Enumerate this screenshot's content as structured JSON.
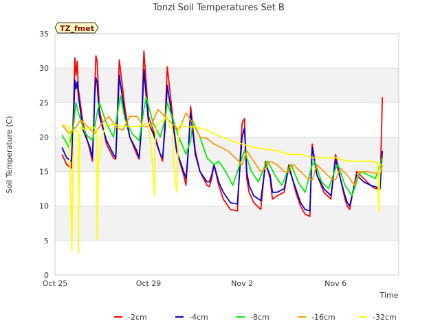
{
  "chart_data": {
    "type": "line",
    "title": "Tonzi Soil Temperatures Set B",
    "xlabel": "Time",
    "ylabel": "Soil Temperature (C)",
    "tag": "TZ_fmet",
    "ylim": [
      0,
      35
    ],
    "xlim_days": [
      "Oct 25",
      "Nov 8"
    ],
    "yticks": [
      0,
      5,
      10,
      15,
      20,
      25,
      30,
      35
    ],
    "xticks": [
      {
        "label": "Oct 25",
        "day": 0
      },
      {
        "label": "Oct 29",
        "day": 4
      },
      {
        "label": "Nov 2",
        "day": 8
      },
      {
        "label": "Nov 6",
        "day": 12
      }
    ],
    "grid": true,
    "legend_position": "bottom",
    "series": [
      {
        "name": "-2cm",
        "color": "#ff0000",
        "x": [
          0.3,
          0.5,
          0.7,
          0.8,
          0.85,
          0.9,
          0.95,
          1.0,
          1.2,
          1.5,
          1.6,
          1.65,
          1.7,
          1.75,
          1.8,
          1.9,
          2.2,
          2.5,
          2.6,
          2.65,
          2.75,
          3.0,
          3.2,
          3.5,
          3.6,
          3.7,
          3.8,
          4.0,
          4.2,
          4.5,
          4.6,
          4.7,
          4.8,
          5.0,
          5.2,
          5.5,
          5.6,
          5.7,
          5.8,
          6.0,
          6.2,
          6.5,
          6.6,
          6.7,
          6.8,
          7.0,
          7.2,
          7.5,
          7.8,
          8.0,
          8.1,
          8.2,
          8.3,
          8.5,
          8.8,
          9.0,
          9.2,
          9.3,
          9.5,
          9.8,
          10.0,
          10.3,
          10.5,
          10.7,
          10.9,
          11.0,
          11.2,
          11.5,
          11.8,
          12.0,
          12.2,
          12.4,
          12.5,
          12.6,
          12.9,
          13.2,
          13.5,
          13.7,
          13.9,
          14.0
        ],
        "y": [
          17.5,
          16.0,
          15.5,
          25.0,
          31.5,
          29.0,
          31.0,
          27.0,
          22.0,
          18.0,
          16.5,
          21.0,
          27.0,
          31.8,
          31.0,
          24.0,
          19.0,
          17.0,
          16.8,
          22.0,
          31.2,
          24.0,
          20.0,
          17.5,
          16.8,
          22.0,
          32.5,
          23.0,
          21.0,
          17.5,
          16.5,
          22.0,
          30.2,
          24.0,
          18.0,
          14.5,
          13.0,
          18.0,
          24.5,
          18.0,
          15.0,
          13.0,
          12.8,
          14.0,
          16.0,
          13.0,
          11.0,
          9.5,
          9.3,
          22.0,
          22.7,
          14.0,
          12.0,
          10.5,
          9.5,
          16.5,
          14.0,
          11.0,
          11.5,
          12.0,
          16.0,
          12.0,
          10.0,
          8.8,
          8.5,
          19.0,
          14.5,
          12.0,
          11.0,
          17.5,
          14.0,
          11.0,
          10.0,
          9.5,
          15.0,
          14.0,
          13.0,
          12.5,
          12.5,
          25.8
        ]
      },
      {
        "name": "-4cm",
        "color": "#0000cc",
        "x": [
          0.3,
          0.5,
          0.7,
          0.8,
          0.85,
          0.9,
          0.95,
          1.0,
          1.2,
          1.5,
          1.6,
          1.65,
          1.7,
          1.75,
          1.8,
          1.9,
          2.2,
          2.5,
          2.6,
          2.65,
          2.75,
          3.0,
          3.2,
          3.5,
          3.6,
          3.7,
          3.8,
          4.0,
          4.2,
          4.5,
          4.6,
          4.7,
          4.8,
          5.0,
          5.2,
          5.5,
          5.6,
          5.7,
          5.8,
          6.0,
          6.2,
          6.5,
          6.6,
          6.7,
          6.8,
          7.0,
          7.2,
          7.5,
          7.8,
          8.0,
          8.1,
          8.2,
          8.3,
          8.5,
          8.8,
          9.0,
          9.2,
          9.3,
          9.5,
          9.8,
          10.0,
          10.3,
          10.5,
          10.7,
          10.9,
          11.0,
          11.2,
          11.5,
          11.8,
          12.0,
          12.2,
          12.4,
          12.5,
          12.6,
          12.9,
          13.2,
          13.5,
          13.7,
          13.9,
          14.0
        ],
        "y": [
          18.5,
          17.0,
          16.5,
          23.0,
          28.3,
          27.0,
          28.0,
          26.0,
          21.0,
          18.5,
          17.0,
          21.0,
          26.0,
          28.6,
          28.0,
          23.0,
          19.5,
          17.5,
          17.0,
          21.0,
          29.0,
          23.0,
          20.0,
          18.0,
          17.0,
          21.5,
          29.8,
          22.0,
          20.5,
          17.5,
          17.0,
          21.0,
          27.5,
          23.0,
          18.0,
          15.0,
          14.0,
          18.0,
          23.5,
          17.5,
          15.0,
          13.5,
          13.5,
          14.5,
          16.0,
          13.5,
          12.0,
          10.5,
          10.3,
          20.0,
          21.3,
          15.0,
          13.0,
          11.5,
          10.8,
          16.0,
          14.5,
          12.0,
          12.0,
          12.5,
          15.5,
          12.5,
          10.5,
          9.5,
          9.3,
          18.5,
          14.5,
          12.5,
          11.5,
          16.8,
          14.0,
          11.5,
          10.5,
          10.0,
          14.5,
          13.5,
          13.0,
          12.8,
          12.5,
          18.0
        ]
      },
      {
        "name": "-8cm",
        "color": "#00ee00",
        "x": [
          0.3,
          0.6,
          0.8,
          0.9,
          1.0,
          1.3,
          1.6,
          1.8,
          1.9,
          2.2,
          2.5,
          2.7,
          2.8,
          3.0,
          3.3,
          3.6,
          3.8,
          3.9,
          4.2,
          4.5,
          4.7,
          4.8,
          5.0,
          5.3,
          5.6,
          5.8,
          5.9,
          6.2,
          6.5,
          6.8,
          7.0,
          7.3,
          7.6,
          8.0,
          8.1,
          8.4,
          8.7,
          9.0,
          9.1,
          9.4,
          9.7,
          10.0,
          10.1,
          10.4,
          10.7,
          11.0,
          11.1,
          11.4,
          11.7,
          12.0,
          12.1,
          12.4,
          12.7,
          13.0,
          13.1,
          13.4,
          13.7,
          14.0
        ],
        "y": [
          20.3,
          18.5,
          22.0,
          25.0,
          23.5,
          20.5,
          19.5,
          23.5,
          25.0,
          22.0,
          20.0,
          24.0,
          26.0,
          22.5,
          20.5,
          19.5,
          24.0,
          25.8,
          22.0,
          20.0,
          22.5,
          25.0,
          23.0,
          20.0,
          17.5,
          19.5,
          22.3,
          20.0,
          17.0,
          16.0,
          16.5,
          15.0,
          13.0,
          17.0,
          18.0,
          15.0,
          13.5,
          16.0,
          16.5,
          14.5,
          13.0,
          15.5,
          16.0,
          13.5,
          12.0,
          16.0,
          16.5,
          13.5,
          12.5,
          15.5,
          16.0,
          13.0,
          11.5,
          14.5,
          15.0,
          14.5,
          14.0,
          17.0
        ]
      },
      {
        "name": "-16cm",
        "color": "#ff9900",
        "x": [
          0.3,
          0.6,
          0.9,
          1.1,
          1.4,
          1.7,
          2.0,
          2.3,
          2.6,
          2.9,
          3.2,
          3.5,
          3.8,
          4.1,
          4.4,
          4.7,
          5.0,
          5.3,
          5.6,
          5.9,
          6.2,
          6.5,
          6.8,
          7.1,
          7.4,
          7.7,
          8.0,
          8.2,
          8.5,
          8.8,
          9.0,
          9.2,
          9.5,
          9.8,
          10.0,
          10.2,
          10.5,
          10.8,
          11.0,
          11.2,
          11.5,
          11.8,
          12.0,
          12.2,
          12.5,
          12.8,
          13.0,
          13.3,
          13.6,
          13.9,
          14.0
        ],
        "y": [
          21.8,
          20.5,
          21.5,
          22.5,
          21.5,
          20.5,
          22.0,
          23.0,
          21.5,
          21.0,
          23.0,
          23.0,
          21.5,
          21.5,
          24.0,
          23.0,
          22.0,
          21.0,
          23.5,
          22.0,
          20.0,
          19.8,
          19.0,
          18.5,
          18.0,
          17.0,
          16.0,
          18.0,
          16.5,
          15.0,
          15.5,
          16.5,
          16.0,
          15.0,
          15.0,
          16.0,
          15.0,
          14.0,
          13.8,
          16.0,
          15.0,
          14.0,
          13.8,
          15.5,
          14.5,
          13.0,
          15.0,
          15.0,
          14.8,
          14.8,
          16.0
        ]
      },
      {
        "name": "-32cm",
        "color": "#ffff00",
        "x": [
          0.3,
          0.6,
          0.68,
          0.72,
          0.76,
          0.8,
          0.9,
          1.0,
          1.0,
          1.05,
          1.1,
          1.3,
          1.6,
          1.8,
          1.8,
          1.85,
          1.9,
          2.0,
          2.1,
          2.2,
          2.5,
          3.0,
          3.5,
          4.0,
          4.2,
          4.25,
          4.3,
          4.4,
          4.6,
          4.8,
          4.9,
          5.0,
          5.1,
          5.2,
          5.3,
          5.4,
          5.5,
          6.0,
          6.5,
          7.0,
          7.5,
          8.0,
          8.5,
          9.0,
          9.5,
          10.0,
          10.5,
          11.0,
          11.5,
          12.0,
          12.5,
          13.0,
          13.5,
          13.8,
          13.85,
          13.9,
          14.0
        ],
        "y": [
          21.8,
          21.5,
          10.0,
          3.5,
          15.0,
          21.0,
          21.0,
          20.5,
          3.2,
          20.0,
          21.5,
          21.0,
          21.5,
          21.0,
          5.2,
          16.0,
          17.0,
          20.0,
          21.0,
          21.8,
          21.8,
          21.5,
          21.5,
          22.0,
          15.0,
          11.5,
          21.0,
          22.0,
          22.3,
          23.0,
          21.5,
          21.5,
          15.0,
          12.0,
          21.5,
          22.0,
          21.5,
          21.5,
          21.0,
          20.2,
          19.5,
          19.0,
          18.5,
          18.3,
          18.0,
          17.5,
          17.5,
          17.0,
          17.0,
          17.0,
          16.5,
          16.5,
          16.5,
          16.3,
          9.2,
          16.0,
          16.0
        ]
      }
    ]
  }
}
